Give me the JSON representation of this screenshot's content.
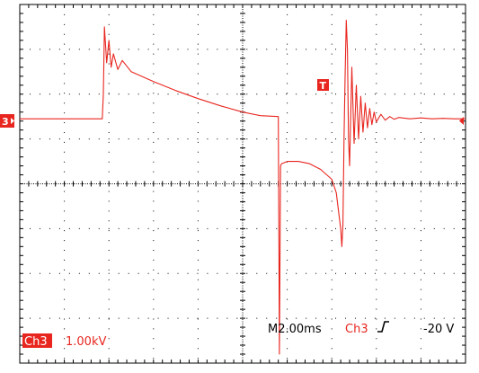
{
  "colors": {
    "trace": "#e8261f",
    "grid": "#000000",
    "marker_fill": "#e8261f",
    "marker_text": "#ffffff",
    "readout_text": "#000000"
  },
  "channel": {
    "marker_label": "3",
    "name": "Ch3",
    "scale": "1.00kV"
  },
  "readout": {
    "timebase": "M2.00ms",
    "trigger_source": "Ch3",
    "trigger_slope_icon": "rising-edge-icon",
    "trigger_level": "-20 V"
  },
  "trigger_marker_label": "T",
  "chart_data": {
    "type": "line",
    "title": "",
    "xlabel": "",
    "ylabel": "",
    "x_unit": "ms",
    "y_unit": "kV",
    "xlim": [
      -10,
      10
    ],
    "ylim": [
      -4,
      4
    ],
    "grid": true,
    "divisions": {
      "x": 10,
      "y": 8
    },
    "series": [
      {
        "x": [
          -10.0,
          -6.3,
          -6.25,
          -6.2,
          -6.1,
          -6.0,
          -5.9,
          -5.8,
          -5.6,
          -5.4,
          -5.0,
          -4.0,
          -3.0,
          -2.0,
          -1.0,
          0.0,
          0.8,
          1.6,
          1.65,
          1.7,
          1.75,
          2.0,
          2.5,
          3.0,
          3.5,
          4.0,
          4.2,
          4.4,
          4.45,
          4.5,
          4.55,
          4.6,
          4.65,
          4.7,
          4.75,
          4.8,
          4.9,
          5.0,
          5.1,
          5.2,
          5.3,
          5.4,
          5.5,
          5.6,
          5.7,
          5.8,
          5.9,
          6.0,
          6.2,
          6.4,
          6.6,
          6.8,
          7.0,
          7.5,
          8.0,
          8.5,
          9.0,
          9.5,
          10.0
        ],
        "y": [
          1.45,
          1.45,
          2.0,
          3.5,
          2.7,
          3.2,
          2.6,
          2.9,
          2.55,
          2.75,
          2.5,
          2.28,
          2.08,
          1.9,
          1.74,
          1.6,
          1.52,
          1.5,
          -3.8,
          0.4,
          0.45,
          0.5,
          0.5,
          0.45,
          0.32,
          0.1,
          -0.2,
          -1.0,
          -1.4,
          -0.9,
          1.0,
          2.5,
          3.65,
          3.0,
          1.0,
          0.4,
          2.6,
          0.9,
          2.2,
          1.0,
          1.95,
          1.15,
          1.8,
          1.25,
          1.68,
          1.32,
          1.6,
          1.38,
          1.55,
          1.42,
          1.5,
          1.44,
          1.48,
          1.45,
          1.47,
          1.45,
          1.46,
          1.45,
          1.45
        ]
      }
    ]
  }
}
